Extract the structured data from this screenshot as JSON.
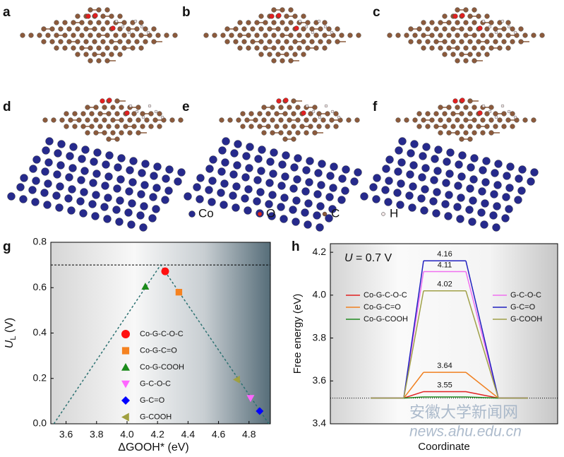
{
  "structures": {
    "panel_labels": [
      "a",
      "b",
      "c",
      "d",
      "e",
      "f"
    ],
    "legend": [
      "Co",
      "O",
      "C",
      "H"
    ]
  },
  "chart_data": [
    {
      "type": "scatter",
      "panel_label": "g",
      "xlabel": "ΔGOOH* (eV)",
      "ylabel": {
        "symbol": "U",
        "subscript": "L",
        "unit": " (V)"
      },
      "xlim": [
        3.5,
        4.94
      ],
      "ylim": [
        0,
        0.8
      ],
      "xticks": [
        3.6,
        3.8,
        {
          "value": 4,
          "label": "4.0"
        },
        4.2,
        4.4,
        4.6,
        4.8
      ],
      "yticks": [
        {
          "value": 0,
          "label": "0.0"
        },
        0.2,
        0.4,
        0.6,
        0.8
      ],
      "reference_line": 0.7,
      "volcano": {
        "x": [
          3.52,
          4.22,
          4.93
        ],
        "y": [
          0,
          0.7,
          0
        ]
      },
      "series": [
        {
          "name": "Co-G-C-O-C",
          "color": "#ff1010",
          "marker": "circle",
          "x": [
            4.25
          ],
          "values": [
            0.672
          ]
        },
        {
          "name": "Co-G-C=O",
          "color": "#f58220",
          "marker": "square",
          "x": [
            4.34
          ],
          "values": [
            0.58
          ]
        },
        {
          "name": "Co-G-COOH",
          "color": "#1a8a1a",
          "marker": "triangle-up",
          "x": [
            4.12
          ],
          "values": [
            0.605
          ]
        },
        {
          "name": "G-C-O-C",
          "color": "#ff66ff",
          "marker": "triangle-down",
          "x": [
            4.81
          ],
          "values": [
            0.113
          ]
        },
        {
          "name": "G-C=O",
          "color": "#0000ff",
          "marker": "diamond",
          "x": [
            4.87
          ],
          "values": [
            0.056
          ]
        },
        {
          "name": "G-COOH",
          "color": "#a0a040",
          "marker": "triangle-left",
          "x": [
            4.72
          ],
          "values": [
            0.195
          ]
        }
      ]
    },
    {
      "type": "energy_diagram",
      "panel_label": "h",
      "xlabel": "Coordinate",
      "ylabel": "Free energy (eV)",
      "annotation": {
        "symbol": "U",
        "text": " = 0.7 V"
      },
      "ylim": [
        3.4,
        4.24
      ],
      "yticks": [
        3.4,
        3.6,
        3.8,
        {
          "value": 4,
          "label": "4.0"
        },
        4.2
      ],
      "series": [
        {
          "name": "Co-G-C-O-C",
          "color": "#e02020",
          "values": [
            3.52,
            3.55,
            3.52
          ],
          "show_label": true
        },
        {
          "name": "Co-G-C=O",
          "color": "#f08020",
          "values": [
            3.52,
            3.64,
            3.52
          ],
          "show_label": true
        },
        {
          "name": "Co-G-COOH",
          "color": "#208a20",
          "values": [
            3.52,
            3.525,
            3.52
          ],
          "show_label": false
        },
        {
          "name": "G-C-O-C",
          "color": "#f070f0",
          "values": [
            3.52,
            4.11,
            3.52
          ],
          "show_label": true
        },
        {
          "name": "G-C=O",
          "color": "#2020c0",
          "values": [
            3.52,
            4.16,
            3.52
          ],
          "show_label": true
        },
        {
          "name": "G-COOH",
          "color": "#a0a048",
          "values": [
            3.52,
            4.02,
            3.52
          ],
          "show_label": true
        }
      ]
    }
  ],
  "watermark": [
    "安徽大学新闻网",
    "news.ahu.edu.cn"
  ]
}
